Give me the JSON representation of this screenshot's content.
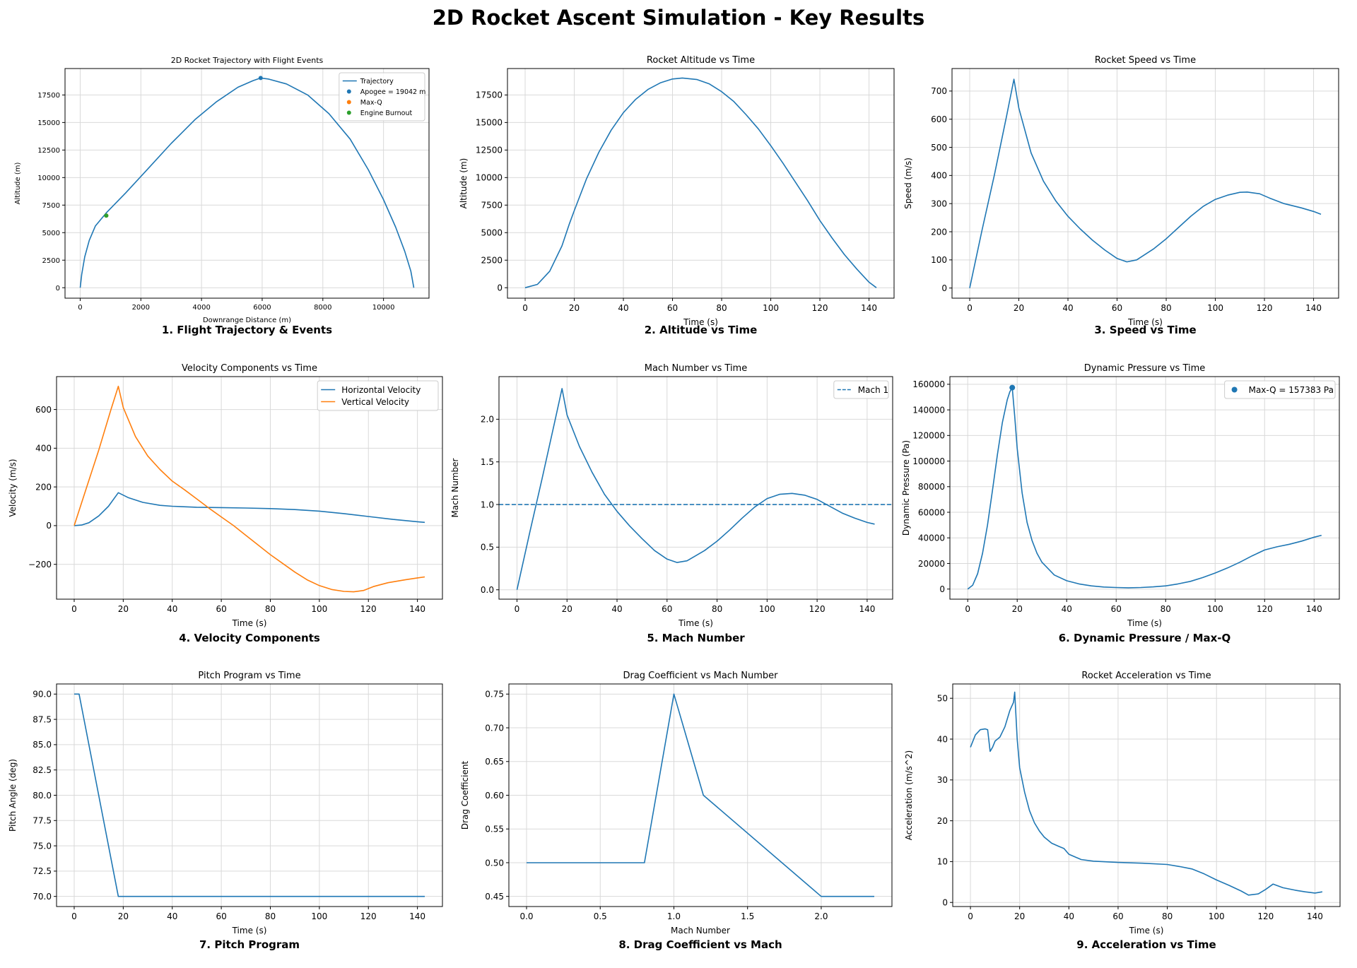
{
  "figure_title": "2D Rocket Ascent Simulation - Key Results",
  "colors": {
    "blue": "#1f77b4",
    "orange": "#ff7f0e",
    "green": "#2ca02c",
    "grid": "#d9d9d9",
    "axes": "#000000"
  },
  "chart_data": [
    {
      "id": "trajectory",
      "type": "line",
      "title": "2D Rocket Trajectory with Flight Events",
      "caption": "1. Flight Trajectory & Events",
      "xlabel": "Downrange Distance (m)",
      "ylabel": "Altitude (m)",
      "xlim": [
        -500,
        11500
      ],
      "ylim": [
        -950,
        19900
      ],
      "xticks": [
        0,
        2000,
        4000,
        6000,
        8000,
        10000
      ],
      "yticks": [
        0,
        2500,
        5000,
        7500,
        10000,
        12500,
        15000,
        17500
      ],
      "grid": true,
      "legend": "top-right",
      "small": true,
      "series": [
        {
          "name": "Trajectory",
          "kind": "line",
          "color": "#1f77b4",
          "x": [
            0,
            50,
            150,
            300,
            500,
            860,
            1500,
            2200,
            3000,
            3800,
            4500,
            5200,
            5700,
            5950,
            6200,
            6800,
            7500,
            8200,
            8900,
            9500,
            10000,
            10400,
            10700,
            10900,
            11000
          ],
          "y": [
            0,
            1200,
            2800,
            4300,
            5600,
            6800,
            8600,
            10700,
            13100,
            15300,
            16900,
            18200,
            18800,
            19042,
            18950,
            18500,
            17500,
            15800,
            13500,
            10700,
            8000,
            5500,
            3300,
            1500,
            0
          ]
        },
        {
          "name": "Apogee = 19042 m",
          "kind": "point",
          "color": "#1f77b4",
          "x": [
            5950
          ],
          "y": [
            19042
          ]
        },
        {
          "name": "Max-Q",
          "kind": "point",
          "color": "#ff7f0e",
          "x": [
            860
          ],
          "y": [
            6550
          ]
        },
        {
          "name": "Engine Burnout",
          "kind": "point",
          "color": "#2ca02c",
          "x": [
            860
          ],
          "y": [
            6550
          ]
        }
      ]
    },
    {
      "id": "altitude",
      "type": "line",
      "title": "Rocket Altitude vs Time",
      "caption": "2. Altitude vs Time",
      "xlabel": "Time (s)",
      "ylabel": "Altitude (m)",
      "xlim": [
        -7.2,
        150.2
      ],
      "ylim": [
        -950,
        19900
      ],
      "xticks": [
        0,
        20,
        40,
        60,
        80,
        100,
        120,
        140
      ],
      "yticks": [
        0,
        2500,
        5000,
        7500,
        10000,
        12500,
        15000,
        17500
      ],
      "grid": true,
      "series": [
        {
          "name": "",
          "kind": "line",
          "color": "#1f77b4",
          "x": [
            0,
            5,
            10,
            15,
            18,
            20,
            25,
            30,
            35,
            40,
            45,
            50,
            55,
            60,
            64,
            70,
            75,
            80,
            85,
            90,
            95,
            100,
            105,
            110,
            115,
            120,
            125,
            130,
            135,
            140,
            143
          ],
          "y": [
            0,
            300,
            1500,
            3800,
            5800,
            7000,
            9900,
            12300,
            14300,
            15900,
            17100,
            18000,
            18600,
            18950,
            19042,
            18900,
            18500,
            17800,
            16900,
            15700,
            14400,
            12900,
            11300,
            9600,
            7900,
            6100,
            4500,
            3000,
            1700,
            500,
            0
          ]
        }
      ]
    },
    {
      "id": "speed",
      "type": "line",
      "title": "Rocket Speed vs Time",
      "caption": "3. Speed vs Time",
      "xlabel": "Time (s)",
      "ylabel": "Speed (m/s)",
      "xlim": [
        -7.2,
        150.2
      ],
      "ylim": [
        -36,
        780
      ],
      "xticks": [
        0,
        20,
        40,
        60,
        80,
        100,
        120,
        140
      ],
      "yticks": [
        0,
        100,
        200,
        300,
        400,
        500,
        600,
        700
      ],
      "grid": true,
      "series": [
        {
          "name": "",
          "kind": "line",
          "color": "#1f77b4",
          "x": [
            0,
            5,
            10,
            15,
            18,
            20,
            25,
            30,
            35,
            40,
            45,
            50,
            55,
            60,
            64,
            68,
            75,
            80,
            85,
            90,
            95,
            100,
            105,
            110,
            113,
            118,
            122,
            128,
            135,
            140,
            143
          ],
          "y": [
            0,
            205,
            400,
            610,
            742,
            640,
            480,
            380,
            310,
            255,
            210,
            170,
            135,
            105,
            93,
            100,
            140,
            175,
            215,
            255,
            290,
            315,
            330,
            340,
            341,
            335,
            320,
            300,
            285,
            272,
            262
          ]
        }
      ]
    },
    {
      "id": "velocity",
      "type": "line",
      "title": "Velocity Components vs Time",
      "caption": "4. Velocity Components",
      "xlabel": "Time (s)",
      "ylabel": "Velocity (m/s)",
      "xlim": [
        -7.2,
        150.2
      ],
      "ylim": [
        -380,
        770
      ],
      "xticks": [
        0,
        20,
        40,
        60,
        80,
        100,
        120,
        140
      ],
      "yticks": [
        -200,
        0,
        200,
        400,
        600
      ],
      "grid": true,
      "legend": "top-right",
      "series": [
        {
          "name": "Horizontal Velocity",
          "kind": "line",
          "color": "#1f77b4",
          "x": [
            0,
            3,
            6,
            10,
            14,
            18,
            22,
            28,
            35,
            40,
            50,
            60,
            70,
            80,
            90,
            100,
            110,
            120,
            130,
            140,
            143
          ],
          "y": [
            0,
            3,
            15,
            50,
            100,
            170,
            145,
            120,
            105,
            100,
            95,
            93,
            91,
            88,
            83,
            75,
            62,
            47,
            32,
            20,
            17
          ]
        },
        {
          "name": "Vertical Velocity",
          "kind": "line",
          "color": "#ff7f0e",
          "x": [
            0,
            5,
            10,
            15,
            18,
            20,
            25,
            30,
            35,
            40,
            45,
            50,
            55,
            60,
            65,
            70,
            75,
            80,
            85,
            90,
            95,
            100,
            105,
            110,
            114,
            118,
            122,
            128,
            135,
            140,
            143
          ],
          "y": [
            0,
            195,
            390,
            600,
            720,
            610,
            460,
            360,
            290,
            230,
            185,
            138,
            90,
            45,
            0,
            -50,
            -100,
            -150,
            -195,
            -240,
            -280,
            -310,
            -330,
            -340,
            -342,
            -335,
            -315,
            -295,
            -280,
            -270,
            -265
          ]
        }
      ]
    },
    {
      "id": "mach",
      "type": "line",
      "title": "Mach Number vs Time",
      "caption": "5. Mach Number",
      "xlabel": "Time (s)",
      "ylabel": "Mach Number",
      "xlim": [
        -7.2,
        150.2
      ],
      "ylim": [
        -0.11,
        2.5
      ],
      "xticks": [
        0,
        20,
        40,
        60,
        80,
        100,
        120,
        140
      ],
      "yticks": [
        0.0,
        0.5,
        1.0,
        1.5,
        2.0
      ],
      "ytick_labels": [
        "0.0",
        "0.5",
        "1.0",
        "1.5",
        "2.0"
      ],
      "grid": true,
      "legend": "top-right",
      "series": [
        {
          "name": "",
          "kind": "line",
          "color": "#1f77b4",
          "x": [
            0,
            5,
            10,
            15,
            18,
            20,
            25,
            30,
            35,
            40,
            45,
            50,
            55,
            60,
            64,
            68,
            75,
            80,
            85,
            90,
            95,
            100,
            105,
            110,
            115,
            120,
            125,
            130,
            135,
            140,
            143
          ],
          "y": [
            0,
            0.66,
            1.3,
            1.96,
            2.36,
            2.05,
            1.68,
            1.38,
            1.12,
            0.92,
            0.75,
            0.6,
            0.46,
            0.36,
            0.32,
            0.34,
            0.46,
            0.57,
            0.7,
            0.84,
            0.97,
            1.07,
            1.12,
            1.13,
            1.11,
            1.06,
            0.98,
            0.9,
            0.84,
            0.79,
            0.77
          ]
        },
        {
          "name": "Mach 1",
          "kind": "hline",
          "color": "#1f77b4",
          "y": [
            1.0
          ]
        }
      ]
    },
    {
      "id": "dynamic_pressure",
      "type": "line",
      "title": "Dynamic Pressure vs Time",
      "caption": "6. Dynamic Pressure / Max-Q",
      "xlabel": "Time (s)",
      "ylabel": "Dynamic Pressure (Pa)",
      "xlim": [
        -7.2,
        150.2
      ],
      "ylim": [
        -7900,
        166000
      ],
      "xticks": [
        0,
        20,
        40,
        60,
        80,
        100,
        120,
        140
      ],
      "yticks": [
        0,
        20000,
        40000,
        60000,
        80000,
        100000,
        120000,
        140000,
        160000
      ],
      "grid": true,
      "legend": "top-right",
      "series": [
        {
          "name": "",
          "kind": "line",
          "color": "#1f77b4",
          "x": [
            0,
            2,
            4,
            6,
            8,
            10,
            12,
            14,
            16,
            17,
            18,
            19,
            20,
            22,
            24,
            26,
            28,
            30,
            35,
            40,
            45,
            50,
            55,
            60,
            65,
            70,
            75,
            80,
            85,
            90,
            95,
            100,
            105,
            110,
            115,
            120,
            125,
            130,
            135,
            140,
            143
          ],
          "y": [
            0,
            3000,
            12000,
            28000,
            50000,
            77000,
            105000,
            130000,
            148000,
            154000,
            157383,
            135000,
            110000,
            75000,
            52000,
            38000,
            28000,
            21000,
            11000,
            6500,
            4000,
            2500,
            1600,
            1200,
            1000,
            1200,
            1700,
            2500,
            4000,
            6000,
            9000,
            12500,
            16500,
            21000,
            26000,
            30500,
            33000,
            35000,
            37500,
            40500,
            42000
          ]
        },
        {
          "name": "Max-Q = 157383 Pa",
          "kind": "point",
          "color": "#1f77b4",
          "x": [
            18
          ],
          "y": [
            157383
          ]
        }
      ]
    },
    {
      "id": "pitch",
      "type": "line",
      "title": "Pitch Program vs Time",
      "caption": "7. Pitch Program",
      "xlabel": "Time (s)",
      "ylabel": "Pitch Angle (deg)",
      "xlim": [
        -7.2,
        150.2
      ],
      "ylim": [
        69.0,
        91.0
      ],
      "xticks": [
        0,
        20,
        40,
        60,
        80,
        100,
        120,
        140
      ],
      "yticks": [
        70.0,
        72.5,
        75.0,
        77.5,
        80.0,
        82.5,
        85.0,
        87.5,
        90.0
      ],
      "ytick_labels": [
        "70.0",
        "72.5",
        "75.0",
        "77.5",
        "80.0",
        "82.5",
        "85.0",
        "87.5",
        "90.0"
      ],
      "grid": true,
      "series": [
        {
          "name": "",
          "kind": "line",
          "color": "#1f77b4",
          "x": [
            0,
            2,
            18,
            143
          ],
          "y": [
            90,
            90,
            70,
            70
          ]
        }
      ]
    },
    {
      "id": "drag",
      "type": "line",
      "title": "Drag Coefficient vs Mach Number",
      "caption": "8. Drag Coefficient vs Mach",
      "xlabel": "Mach Number",
      "ylabel": "Drag Coefficient",
      "xlim": [
        -0.12,
        2.48
      ],
      "ylim": [
        0.435,
        0.765
      ],
      "xticks": [
        0.0,
        0.5,
        1.0,
        1.5,
        2.0
      ],
      "xtick_labels": [
        "0.0",
        "0.5",
        "1.0",
        "1.5",
        "2.0"
      ],
      "yticks": [
        0.45,
        0.5,
        0.55,
        0.6,
        0.65,
        0.7,
        0.75
      ],
      "ytick_labels": [
        "0.45",
        "0.50",
        "0.55",
        "0.60",
        "0.65",
        "0.70",
        "0.75"
      ],
      "grid": true,
      "series": [
        {
          "name": "",
          "kind": "line",
          "color": "#1f77b4",
          "x": [
            0.0,
            0.8,
            1.0,
            1.2,
            2.0,
            2.36
          ],
          "y": [
            0.5,
            0.5,
            0.75,
            0.6,
            0.45,
            0.45
          ]
        }
      ]
    },
    {
      "id": "acceleration",
      "type": "line",
      "title": "Rocket Acceleration vs Time",
      "caption": "9. Acceleration vs Time",
      "xlabel": "Time (s)",
      "ylabel": "Acceleration (m/s^2)",
      "xlim": [
        -7.2,
        150.2
      ],
      "ylim": [
        -1,
        53.5
      ],
      "xticks": [
        0,
        20,
        40,
        60,
        80,
        100,
        120,
        140
      ],
      "yticks": [
        0,
        10,
        20,
        30,
        40,
        50
      ],
      "grid": true,
      "series": [
        {
          "name": "",
          "kind": "line",
          "color": "#1f77b4",
          "x": [
            0,
            2,
            4,
            6,
            7,
            8,
            9,
            10,
            12,
            14,
            16,
            17.5,
            18,
            19,
            20,
            22,
            24,
            26,
            28,
            30,
            33,
            36,
            38,
            40,
            45,
            50,
            60,
            70,
            80,
            85,
            90,
            95,
            100,
            105,
            110,
            113,
            117,
            120,
            123,
            127,
            132,
            136,
            140,
            143
          ],
          "y": [
            38,
            41,
            42.3,
            42.5,
            42.3,
            37,
            38,
            39.5,
            40.5,
            43,
            47,
            49,
            51.5,
            40,
            33,
            27,
            22.5,
            19.5,
            17.5,
            16,
            14.5,
            13.7,
            13.2,
            11.8,
            10.5,
            10.1,
            9.8,
            9.6,
            9.3,
            8.8,
            8.2,
            7,
            5.5,
            4.2,
            2.8,
            1.8,
            2.1,
            3.2,
            4.5,
            3.6,
            3,
            2.6,
            2.3,
            2.6
          ]
        }
      ]
    }
  ]
}
